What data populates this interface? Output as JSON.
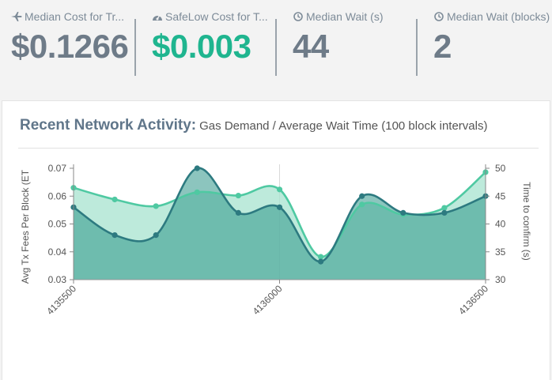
{
  "stats": [
    {
      "label": "Median Cost for Tr...",
      "value": "$0.1266",
      "icon": "plane-icon"
    },
    {
      "label": "SafeLow Cost for T...",
      "value": "$0.003",
      "icon": "gauge-icon"
    },
    {
      "label": "Median Wait (s)",
      "value": "44",
      "icon": "clock-icon"
    },
    {
      "label": "Median Wait (blocks)",
      "value": "2",
      "icon": "clock-icon"
    }
  ],
  "panel": {
    "title": "Recent Network Activity:",
    "subtitle": "Gas Demand / Average Wait Time (100 block intervals)"
  },
  "colors": {
    "accent": "#1fb58f",
    "stat_value": "#6e7b88",
    "fees_line": "#2d7a80",
    "fees_fill": "#2e9688",
    "wait_line": "#4fc9a2",
    "wait_fill": "#a7e3cf"
  },
  "chart_data": {
    "type": "area",
    "x": [
      4135500,
      4135600,
      4135700,
      4135800,
      4135900,
      4136000,
      4136100,
      4136200,
      4136300,
      4136400,
      4136500
    ],
    "x_tick_labels": [
      "4135500",
      "4136000",
      "4136500"
    ],
    "x_ticks": [
      4135500,
      4136000,
      4136500
    ],
    "series": [
      {
        "name": "Avg Tx Fees Per Block (ET",
        "axis": "left",
        "values": [
          0.056,
          0.046,
          0.046,
          0.07,
          0.054,
          0.056,
          0.0365,
          0.06,
          0.054,
          0.054,
          0.06
        ]
      },
      {
        "name": "Time to confirm (s)",
        "axis": "right",
        "values": [
          46.5,
          44.4,
          43.2,
          45.7,
          45.1,
          46.2,
          34.1,
          43.5,
          41.7,
          42.9,
          49.3
        ]
      }
    ],
    "y_left": {
      "label": "Avg Tx Fees Per Block (ET",
      "lim": [
        0.03,
        0.07
      ],
      "ticks": [
        "0.03",
        "0.04",
        "0.05",
        "0.06",
        "0.07"
      ]
    },
    "y_right": {
      "label": "Time to confirm (s)",
      "lim": [
        30,
        50
      ],
      "ticks": [
        "30",
        "35",
        "40",
        "45",
        "50"
      ]
    },
    "grid": "vertical-at-x-ticks",
    "legend": "none"
  }
}
